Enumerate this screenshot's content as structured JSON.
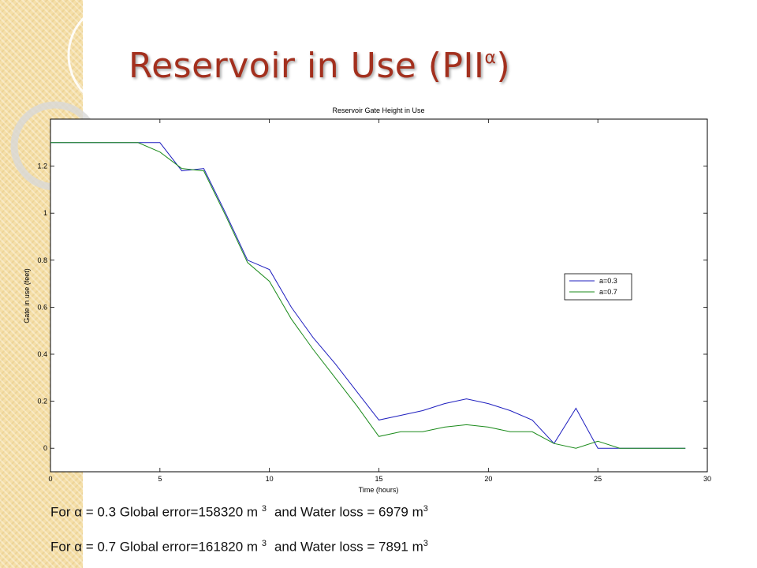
{
  "slide": {
    "title_main": "Reservoir in Use (PII",
    "title_sup": "α",
    "title_close": ")"
  },
  "footnotes": [
    {
      "prefix": "For α = 0.3 Global error=158320 m",
      "exp1": "3",
      "mid": "and Water loss = 6979 m",
      "exp2": "3"
    },
    {
      "prefix": "For α = 0.7 Global error=161820 m",
      "exp1": "3",
      "mid": "and Water loss = 7891 m",
      "exp2": "3"
    }
  ],
  "chart_data": {
    "type": "line",
    "title": "Reservoir Gate Height in Use",
    "xlabel": "Time (hours)",
    "ylabel": "Gate in use (feet)",
    "xlim": [
      0,
      30
    ],
    "ylim": [
      -0.1,
      1.4
    ],
    "xticks": [
      0,
      5,
      10,
      15,
      20,
      25,
      30
    ],
    "yticks": [
      0,
      0.2,
      0.4,
      0.6,
      0.8,
      1,
      1.2
    ],
    "ytick_labels": [
      "0",
      "0.2",
      "0.4",
      "0.6",
      "0.8",
      "1",
      "1.2"
    ],
    "grid": false,
    "legend_position": "right",
    "series": [
      {
        "name": "a=0.3",
        "color": "#1f1fbf",
        "x": [
          0,
          1,
          2,
          3,
          4,
          5,
          6,
          7,
          8,
          9,
          10,
          11,
          12,
          13,
          14,
          15,
          16,
          17,
          18,
          19,
          20,
          21,
          22,
          23,
          24,
          25,
          26,
          27,
          28,
          29
        ],
        "y": [
          1.3,
          1.3,
          1.3,
          1.3,
          1.3,
          1.3,
          1.18,
          1.19,
          1.0,
          0.8,
          0.76,
          0.6,
          0.47,
          0.36,
          0.24,
          0.12,
          0.14,
          0.16,
          0.19,
          0.21,
          0.19,
          0.16,
          0.12,
          0.02,
          0.17,
          0.0,
          0.0,
          0.0,
          0.0,
          0.0
        ]
      },
      {
        "name": "a=0.7",
        "color": "#1a8a1a",
        "x": [
          0,
          1,
          2,
          3,
          4,
          5,
          6,
          7,
          8,
          9,
          10,
          11,
          12,
          13,
          14,
          15,
          16,
          17,
          18,
          19,
          20,
          21,
          22,
          23,
          24,
          25,
          26,
          27,
          28,
          29
        ],
        "y": [
          1.3,
          1.3,
          1.3,
          1.3,
          1.3,
          1.26,
          1.19,
          1.18,
          0.99,
          0.79,
          0.71,
          0.55,
          0.42,
          0.3,
          0.18,
          0.05,
          0.07,
          0.07,
          0.09,
          0.1,
          0.09,
          0.07,
          0.07,
          0.02,
          0.0,
          0.03,
          0.0,
          0.0,
          0.0,
          0.0
        ]
      }
    ]
  }
}
